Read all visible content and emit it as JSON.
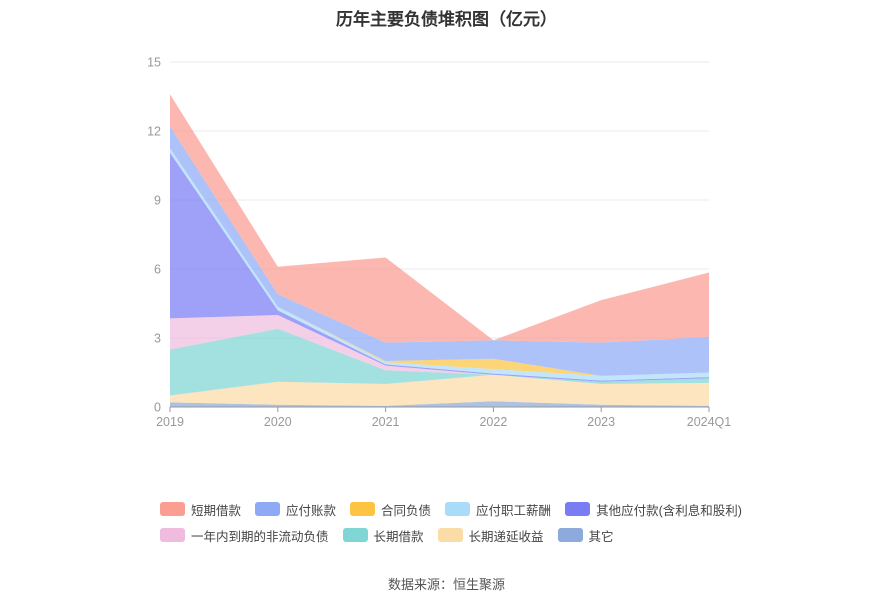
{
  "chart_data": {
    "type": "area",
    "title": "历年主要负债堆积图（亿元）",
    "stacked": true,
    "categories": [
      "2019",
      "2020",
      "2021",
      "2022",
      "2023",
      "2024Q1"
    ],
    "ylim": [
      0,
      15
    ],
    "yticks": [
      "0",
      "3",
      "6",
      "9",
      "12",
      "15"
    ],
    "grid": true,
    "legend_position": "bottom",
    "series": [
      {
        "name": "其它",
        "color": "#8caadb",
        "values": [
          0.2,
          0.1,
          0.05,
          0.25,
          0.1,
          0.05
        ]
      },
      {
        "name": "长期递延收益",
        "color": "#fbdba6",
        "values": [
          0.3,
          1.0,
          0.95,
          1.15,
          0.9,
          1.0
        ]
      },
      {
        "name": "长期借款",
        "color": "#7fd6d4",
        "values": [
          2.0,
          2.3,
          0.6,
          0.0,
          0.1,
          0.2
        ]
      },
      {
        "name": "一年内到期的非流动负债",
        "color": "#efbcdf",
        "values": [
          1.35,
          0.6,
          0.2,
          0.0,
          0.0,
          0.0
        ]
      },
      {
        "name": "其他应付款(含利息和股利)",
        "color": "#7a7cf4",
        "values": [
          7.2,
          0.2,
          0.05,
          0.05,
          0.05,
          0.05
        ]
      },
      {
        "name": "应付职工薪酬",
        "color": "#a9dcf9",
        "values": [
          0.2,
          0.15,
          0.1,
          0.2,
          0.2,
          0.2
        ]
      },
      {
        "name": "合同负债",
        "color": "#fcc441",
        "values": [
          0.0,
          0.0,
          0.05,
          0.45,
          0.0,
          0.0
        ]
      },
      {
        "name": "应付账款",
        "color": "#8eaaf7",
        "values": [
          0.95,
          0.55,
          0.8,
          0.8,
          1.45,
          1.55
        ]
      },
      {
        "name": "短期借款",
        "color": "#fb9d92",
        "values": [
          1.4,
          1.2,
          3.7,
          0.0,
          1.85,
          2.8
        ]
      }
    ]
  },
  "legend_rows": [
    [
      "短期借款",
      "应付账款",
      "合同负债",
      "应付职工薪酬",
      "其他应付款(含利息和股利)"
    ],
    [
      "一年内到期的非流动负债",
      "长期借款",
      "长期递延收益",
      "其它"
    ]
  ],
  "source_text": "数据来源：恒生聚源"
}
